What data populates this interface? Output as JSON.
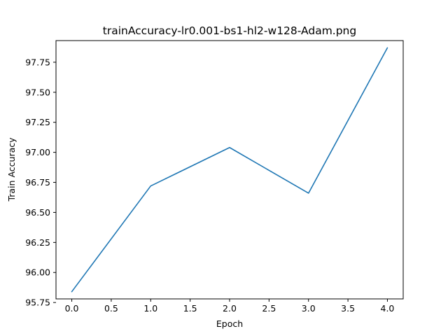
{
  "chart_data": {
    "type": "line",
    "title": "trainAccuracy-lr0.001-bs1-hl2-w128-Adam.png",
    "xlabel": "Epoch",
    "ylabel": "Train Accuracy",
    "x": [
      0,
      1,
      2,
      3,
      4
    ],
    "series": [
      {
        "values": [
          95.84,
          96.72,
          97.04,
          96.66,
          97.87
        ],
        "color": "#1f77b4"
      }
    ],
    "xlim": [
      -0.2,
      4.2
    ],
    "ylim": [
      95.78,
      97.93
    ],
    "xticks": [
      0.0,
      0.5,
      1.0,
      1.5,
      2.0,
      2.5,
      3.0,
      3.5,
      4.0
    ],
    "xtick_labels": [
      "0.0",
      "0.5",
      "1.0",
      "1.5",
      "2.0",
      "2.5",
      "3.0",
      "3.5",
      "4.0"
    ],
    "yticks": [
      95.75,
      96.0,
      96.25,
      96.5,
      96.75,
      97.0,
      97.25,
      97.5,
      97.75
    ],
    "ytick_labels": [
      "95.75",
      "96.00",
      "96.25",
      "96.50",
      "96.75",
      "97.00",
      "97.25",
      "97.50",
      "97.75"
    ],
    "grid": false,
    "legend": "none"
  }
}
